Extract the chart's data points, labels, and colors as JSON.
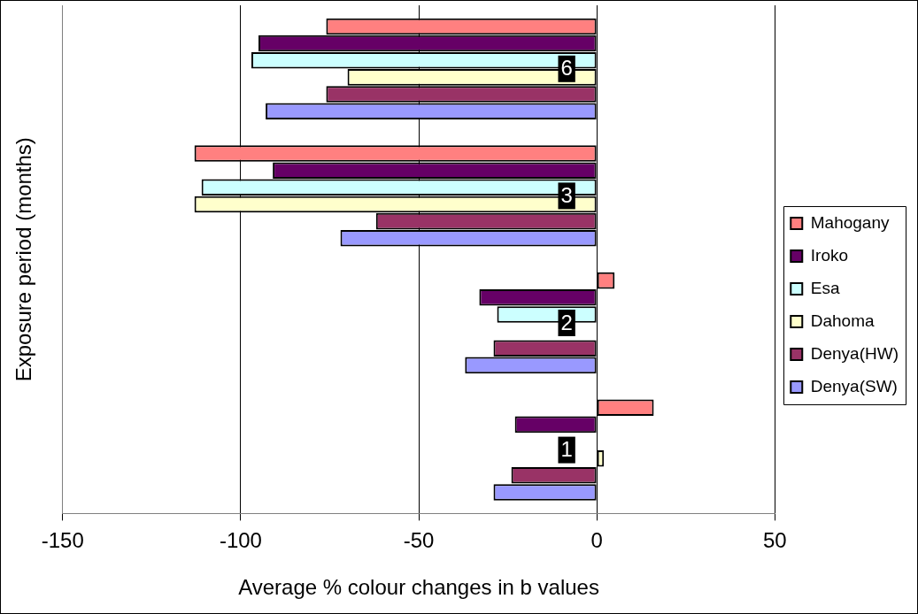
{
  "chart_data": {
    "type": "bar",
    "orientation": "horizontal",
    "xlabel": "Average % colour changes in b values",
    "ylabel": "Exposure period (months)",
    "categories": [
      "6",
      "3",
      "2",
      "1"
    ],
    "series": [
      {
        "name": "Mahogany",
        "color": "#ff8080",
        "values": [
          -76,
          -113,
          5,
          16
        ]
      },
      {
        "name": "Iroko",
        "color": "#660066",
        "values": [
          -95,
          -91,
          -33,
          -23
        ]
      },
      {
        "name": "Esa",
        "color": "#ccffff",
        "values": [
          -97,
          -111,
          -28,
          null
        ]
      },
      {
        "name": "Dahoma",
        "color": "#ffffcc",
        "values": [
          -70,
          -113,
          null,
          2
        ]
      },
      {
        "name": "Denya(HW)",
        "color": "#993366",
        "values": [
          -76,
          -62,
          -29,
          -24
        ]
      },
      {
        "name": "Denya(SW)",
        "color": "#9999ff",
        "values": [
          -93,
          -72,
          -37,
          -29
        ]
      }
    ],
    "xlim": [
      -150,
      50
    ],
    "xticks": [
      -150,
      -100,
      -50,
      0,
      50
    ],
    "grid": "x",
    "legend": "right"
  }
}
